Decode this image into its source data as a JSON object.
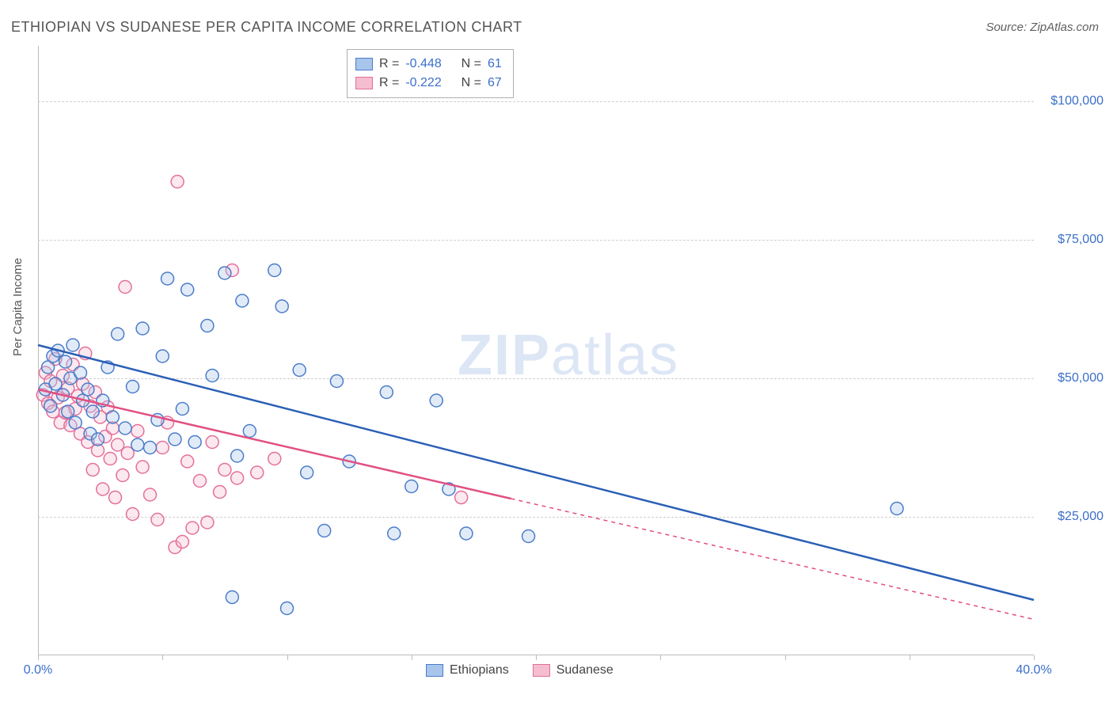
{
  "chart": {
    "type": "scatter",
    "title": "ETHIOPIAN VS SUDANESE PER CAPITA INCOME CORRELATION CHART",
    "source_label": "Source: ZipAtlas.com",
    "y_axis_label": "Per Capita Income",
    "watermark_text_bold": "ZIP",
    "watermark_text_rest": "atlas",
    "background_color": "#ffffff",
    "grid_color": "#cfcfcf",
    "grid_dash": "4,4",
    "axis_color": "#bbbbbb",
    "tick_label_color": "#3b6fc9",
    "title_color": "#555558",
    "xlim": [
      0,
      40
    ],
    "ylim": [
      0,
      110000
    ],
    "x_ticks": [
      0,
      5,
      10,
      15,
      20,
      25,
      30,
      35,
      40
    ],
    "x_tick_labels": {
      "0": "0.0%",
      "40": "40.0%"
    },
    "y_gridlines": [
      25000,
      50000,
      75000,
      100000
    ],
    "y_tick_labels": {
      "25000": "$25,000",
      "50000": "$50,000",
      "75000": "$75,000",
      "100000": "$100,000"
    },
    "marker_radius": 8,
    "marker_stroke_width": 1.5,
    "marker_fill_opacity": 0.35,
    "line_width": 2.5,
    "series": [
      {
        "key": "ethiopians",
        "label": "Ethiopians",
        "fill_color": "#a8c5ec",
        "stroke_color": "#4a7cc9",
        "line_color": "#2b5fb5",
        "R": "-0.448",
        "N": "61",
        "regression": {
          "x1": 0,
          "y1": 56000,
          "x2": 40,
          "y2": 10000,
          "solid_to_x": 40
        },
        "points": [
          [
            0.3,
            48000
          ],
          [
            0.4,
            52000
          ],
          [
            0.5,
            45000
          ],
          [
            0.6,
            54000
          ],
          [
            0.7,
            49000
          ],
          [
            0.8,
            55000
          ],
          [
            1.0,
            47000
          ],
          [
            1.1,
            53000
          ],
          [
            1.2,
            44000
          ],
          [
            1.3,
            50000
          ],
          [
            1.4,
            56000
          ],
          [
            1.5,
            42000
          ],
          [
            1.7,
            51000
          ],
          [
            1.8,
            46000
          ],
          [
            2.0,
            48000
          ],
          [
            2.1,
            40000
          ],
          [
            2.2,
            44000
          ],
          [
            2.4,
            39000
          ],
          [
            2.6,
            46000
          ],
          [
            2.8,
            52000
          ],
          [
            3.0,
            43000
          ],
          [
            3.2,
            58000
          ],
          [
            3.5,
            41000
          ],
          [
            3.8,
            48500
          ],
          [
            4.0,
            38000
          ],
          [
            4.2,
            59000
          ],
          [
            4.5,
            37500
          ],
          [
            4.8,
            42500
          ],
          [
            5.0,
            54000
          ],
          [
            5.2,
            68000
          ],
          [
            5.5,
            39000
          ],
          [
            5.8,
            44500
          ],
          [
            6.0,
            66000
          ],
          [
            6.3,
            38500
          ],
          [
            6.8,
            59500
          ],
          [
            7.0,
            50500
          ],
          [
            7.5,
            69000
          ],
          [
            7.8,
            10500
          ],
          [
            8.0,
            36000
          ],
          [
            8.2,
            64000
          ],
          [
            8.5,
            40500
          ],
          [
            9.5,
            69500
          ],
          [
            9.8,
            63000
          ],
          [
            10.0,
            8500
          ],
          [
            10.5,
            51500
          ],
          [
            10.8,
            33000
          ],
          [
            11.5,
            22500
          ],
          [
            12.0,
            49500
          ],
          [
            12.5,
            35000
          ],
          [
            14.0,
            47500
          ],
          [
            14.3,
            22000
          ],
          [
            15.0,
            30500
          ],
          [
            16.0,
            46000
          ],
          [
            16.5,
            30000
          ],
          [
            17.2,
            22000
          ],
          [
            19.7,
            21500
          ],
          [
            34.5,
            26500
          ]
        ]
      },
      {
        "key": "sudanese",
        "label": "Sudanese",
        "fill_color": "#f5bdd0",
        "stroke_color": "#e36f9a",
        "line_color": "#e15083",
        "R": "-0.222",
        "N": "67",
        "regression": {
          "x1": 0,
          "y1": 48000,
          "x2": 40,
          "y2": 6500,
          "solid_to_x": 19
        },
        "points": [
          [
            0.2,
            47000
          ],
          [
            0.3,
            51000
          ],
          [
            0.4,
            45500
          ],
          [
            0.5,
            49500
          ],
          [
            0.6,
            44000
          ],
          [
            0.7,
            53500
          ],
          [
            0.8,
            46500
          ],
          [
            0.9,
            42000
          ],
          [
            1.0,
            50500
          ],
          [
            1.1,
            43800
          ],
          [
            1.2,
            48200
          ],
          [
            1.3,
            41500
          ],
          [
            1.4,
            52500
          ],
          [
            1.5,
            44500
          ],
          [
            1.6,
            46800
          ],
          [
            1.7,
            40000
          ],
          [
            1.8,
            49000
          ],
          [
            1.9,
            54500
          ],
          [
            2.0,
            38500
          ],
          [
            2.1,
            45000
          ],
          [
            2.2,
            33500
          ],
          [
            2.3,
            47500
          ],
          [
            2.4,
            37000
          ],
          [
            2.5,
            43000
          ],
          [
            2.6,
            30000
          ],
          [
            2.7,
            39500
          ],
          [
            2.8,
            44800
          ],
          [
            2.9,
            35500
          ],
          [
            3.0,
            41000
          ],
          [
            3.1,
            28500
          ],
          [
            3.2,
            38000
          ],
          [
            3.4,
            32500
          ],
          [
            3.5,
            66500
          ],
          [
            3.6,
            36500
          ],
          [
            3.8,
            25500
          ],
          [
            4.0,
            40500
          ],
          [
            4.2,
            34000
          ],
          [
            4.5,
            29000
          ],
          [
            4.8,
            24500
          ],
          [
            5.0,
            37500
          ],
          [
            5.2,
            42000
          ],
          [
            5.5,
            19500
          ],
          [
            5.6,
            85500
          ],
          [
            5.8,
            20500
          ],
          [
            6.0,
            35000
          ],
          [
            6.2,
            23000
          ],
          [
            6.5,
            31500
          ],
          [
            6.8,
            24000
          ],
          [
            7.0,
            38500
          ],
          [
            7.3,
            29500
          ],
          [
            7.5,
            33500
          ],
          [
            7.8,
            69500
          ],
          [
            8.0,
            32000
          ],
          [
            8.8,
            33000
          ],
          [
            9.5,
            35500
          ],
          [
            17.0,
            28500
          ]
        ]
      }
    ],
    "legend_top": {
      "r_label": "R =",
      "n_label": "N ="
    },
    "legend_bottom_labels": [
      "Ethiopians",
      "Sudanese"
    ]
  }
}
